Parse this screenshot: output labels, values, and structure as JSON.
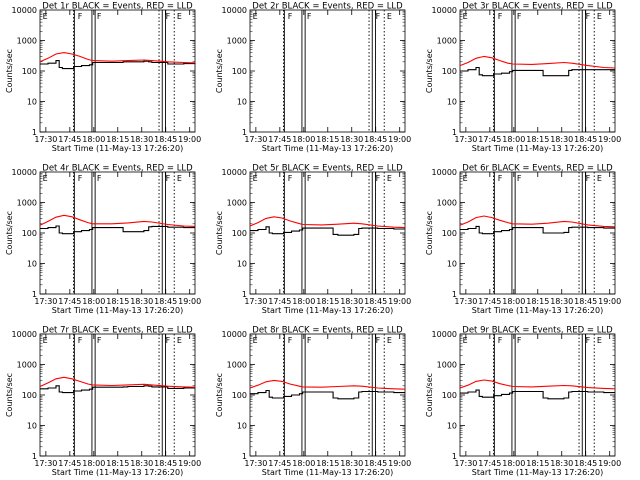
{
  "chart_data": {
    "type": "line",
    "ylabel": "Counts/sec",
    "xlabel": "Start Time (11-May-13 17:26:20)",
    "x_ticks": [
      "17:30",
      "17:45",
      "18:00",
      "18:15",
      "18:30",
      "18:45",
      "19:00"
    ],
    "x_tick_minutes": [
      3.67,
      18.67,
      33.67,
      48.67,
      63.67,
      78.67,
      93.67
    ],
    "xlim_minutes": [
      0,
      97
    ],
    "y_scale": "log",
    "ylim": [
      1,
      10000
    ],
    "y_ticks": [
      "1",
      "10",
      "100",
      "1000",
      "10000"
    ],
    "y_tick_values": [
      1,
      10,
      100,
      1000,
      10000
    ],
    "legend": {
      "black": "Events",
      "red": "LLD"
    },
    "colors": {
      "events": "#000000",
      "lld": "#ff0000"
    },
    "markers": {
      "solid_lines_minutes": [
        21.5,
        32.5,
        34.5,
        76.5,
        78.5
      ],
      "dotted_lines_minutes": [
        21.0,
        74.5,
        84.0
      ],
      "labels": [
        {
          "text": "E",
          "x_minutes": 1.0
        },
        {
          "text": "F",
          "x_minutes": 23.0
        },
        {
          "text": "F",
          "x_minutes": 35.0
        },
        {
          "text": "F",
          "x_minutes": 78.0
        },
        {
          "text": "E",
          "x_minutes": 85.0
        }
      ]
    },
    "panels": [
      {
        "title": "Det 1r BLACK = Events, RED = LLD",
        "series": [
          {
            "name": "Events",
            "x": [
              0,
              5,
              10,
              12,
              14,
              21,
              26,
              31,
              33,
              50,
              52,
              55,
              65,
              68,
              70,
              80,
              90,
              97
            ],
            "values": [
              170,
              180,
              220,
              130,
              120,
              140,
              150,
              160,
              190,
              190,
              200,
              200,
              210,
              200,
              190,
              170,
              175,
              180
            ]
          },
          {
            "name": "LLD",
            "x": [
              0,
              5,
              10,
              15,
              20,
              25,
              30,
              33,
              45,
              55,
              65,
              70,
              80,
              90,
              97
            ],
            "values": [
              200,
              260,
              360,
              400,
              360,
              300,
              240,
              220,
              210,
              220,
              230,
              220,
              200,
              190,
              185
            ]
          }
        ]
      },
      {
        "title": "Det 2r BLACK = Events, RED = LLD",
        "series": []
      },
      {
        "title": "Det 3r BLACK = Events, RED = LLD",
        "series": [
          {
            "name": "Events",
            "x": [
              0,
              5,
              10,
              12,
              14,
              21,
              26,
              31,
              33,
              50,
              52,
              55,
              65,
              68,
              70,
              80,
              90,
              97
            ],
            "values": [
              100,
              110,
              130,
              75,
              70,
              80,
              85,
              95,
              105,
              105,
              70,
              70,
              70,
              105,
              110,
              110,
              110,
              110
            ]
          },
          {
            "name": "LLD",
            "x": [
              0,
              5,
              10,
              15,
              20,
              25,
              30,
              33,
              45,
              55,
              65,
              70,
              80,
              90,
              97
            ],
            "values": [
              150,
              190,
              260,
              300,
              270,
              220,
              180,
              170,
              165,
              175,
              190,
              180,
              150,
              130,
              125
            ]
          }
        ]
      },
      {
        "title": "Det 4r BLACK = Events, RED = LLD",
        "series": [
          {
            "name": "Events",
            "x": [
              0,
              5,
              10,
              12,
              14,
              21,
              26,
              31,
              33,
              50,
              52,
              55,
              65,
              68,
              70,
              80,
              90,
              97
            ],
            "values": [
              140,
              150,
              170,
              100,
              95,
              110,
              120,
              130,
              150,
              150,
              110,
              110,
              120,
              160,
              165,
              155,
              150,
              150
            ]
          },
          {
            "name": "LLD",
            "x": [
              0,
              5,
              10,
              15,
              20,
              25,
              30,
              33,
              45,
              55,
              65,
              70,
              80,
              90,
              97
            ],
            "values": [
              180,
              240,
              330,
              380,
              340,
              270,
              220,
              200,
              200,
              215,
              240,
              230,
              190,
              170,
              165
            ]
          }
        ]
      },
      {
        "title": "Det 5r BLACK = Events, RED = LLD",
        "series": [
          {
            "name": "Events",
            "x": [
              0,
              5,
              10,
              12,
              14,
              21,
              26,
              31,
              33,
              50,
              52,
              55,
              65,
              68,
              70,
              80,
              90,
              97
            ],
            "values": [
              120,
              130,
              160,
              100,
              95,
              105,
              115,
              125,
              145,
              145,
              90,
              85,
              90,
              140,
              145,
              140,
              135,
              135
            ]
          },
          {
            "name": "LLD",
            "x": [
              0,
              5,
              10,
              15,
              20,
              25,
              30,
              33,
              45,
              55,
              65,
              70,
              80,
              90,
              97
            ],
            "values": [
              170,
              220,
              300,
              340,
              310,
              250,
              210,
              190,
              185,
              195,
              210,
              200,
              170,
              155,
              150
            ]
          }
        ]
      },
      {
        "title": "Det 6r BLACK = Events, RED = LLD",
        "series": [
          {
            "name": "Events",
            "x": [
              0,
              5,
              10,
              12,
              14,
              21,
              26,
              31,
              33,
              50,
              52,
              55,
              65,
              68,
              70,
              80,
              90,
              97
            ],
            "values": [
              130,
              140,
              165,
              100,
              95,
              110,
              120,
              130,
              150,
              150,
              100,
              100,
              105,
              150,
              155,
              150,
              145,
              145
            ]
          },
          {
            "name": "LLD",
            "x": [
              0,
              5,
              10,
              15,
              20,
              25,
              30,
              33,
              45,
              55,
              65,
              70,
              80,
              90,
              97
            ],
            "values": [
              180,
              230,
              320,
              360,
              320,
              260,
              220,
              200,
              195,
              210,
              240,
              230,
              185,
              165,
              160
            ]
          }
        ]
      },
      {
        "title": "Det 7r BLACK = Events, RED = LLD",
        "series": [
          {
            "name": "Events",
            "x": [
              0,
              5,
              10,
              12,
              14,
              21,
              26,
              31,
              33,
              50,
              52,
              55,
              65,
              68,
              70,
              80,
              90,
              97
            ],
            "values": [
              160,
              170,
              200,
              125,
              120,
              135,
              145,
              155,
              180,
              180,
              185,
              190,
              200,
              195,
              185,
              165,
              170,
              170
            ]
          },
          {
            "name": "LLD",
            "x": [
              0,
              5,
              10,
              15,
              20,
              25,
              30,
              33,
              45,
              55,
              65,
              70,
              80,
              90,
              97
            ],
            "values": [
              190,
              250,
              340,
              380,
              340,
              280,
              230,
              215,
              205,
              215,
              225,
              215,
              195,
              185,
              180
            ]
          }
        ]
      },
      {
        "title": "Det 8r BLACK = Events, RED = LLD",
        "series": [
          {
            "name": "Events",
            "x": [
              0,
              5,
              10,
              12,
              14,
              21,
              26,
              31,
              33,
              50,
              52,
              55,
              65,
              68,
              70,
              80,
              90,
              97
            ],
            "values": [
              110,
              120,
              140,
              85,
              80,
              90,
              100,
              110,
              125,
              125,
              80,
              75,
              80,
              125,
              130,
              125,
              120,
              120
            ]
          },
          {
            "name": "LLD",
            "x": [
              0,
              5,
              10,
              15,
              20,
              25,
              30,
              33,
              45,
              55,
              65,
              70,
              80,
              90,
              97
            ],
            "values": [
              170,
              210,
              270,
              300,
              280,
              230,
              200,
              185,
              180,
              190,
              200,
              195,
              170,
              160,
              155
            ]
          }
        ]
      },
      {
        "title": "Det 9r BLACK = Events, RED = LLD",
        "series": [
          {
            "name": "Events",
            "x": [
              0,
              5,
              10,
              12,
              14,
              21,
              26,
              31,
              33,
              50,
              52,
              55,
              65,
              68,
              70,
              80,
              90,
              97
            ],
            "values": [
              115,
              125,
              145,
              90,
              85,
              95,
              105,
              115,
              130,
              130,
              80,
              75,
              80,
              125,
              130,
              125,
              120,
              120
            ]
          },
          {
            "name": "LLD",
            "x": [
              0,
              5,
              10,
              15,
              20,
              25,
              30,
              33,
              45,
              55,
              65,
              70,
              80,
              90,
              97
            ],
            "values": [
              170,
              210,
              280,
              310,
              285,
              235,
              205,
              190,
              185,
              195,
              205,
              200,
              175,
              165,
              160
            ]
          }
        ]
      }
    ]
  }
}
